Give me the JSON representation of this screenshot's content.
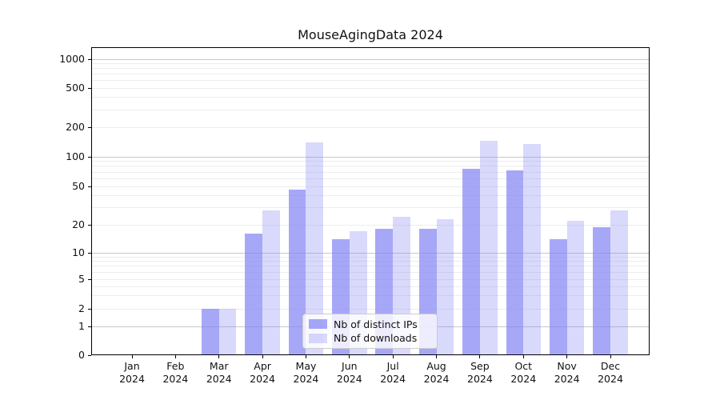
{
  "chart_data": {
    "type": "bar",
    "title": "MouseAgingData 2024",
    "categories": [
      "Jan",
      "Feb",
      "Mar",
      "Apr",
      "May",
      "Jun",
      "Jul",
      "Aug",
      "Sep",
      "Oct",
      "Nov",
      "Dec"
    ],
    "x_tick_year": "2024",
    "series": [
      {
        "name": "Nb of distinct IPs",
        "color": "#8282f5",
        "alpha": 0.7,
        "values": [
          0,
          0,
          2,
          16,
          46,
          14,
          18,
          18,
          75,
          73,
          14,
          19
        ]
      },
      {
        "name": "Nb of downloads",
        "color": "#8282f5",
        "alpha": 0.3,
        "values": [
          0,
          0,
          2,
          28,
          140,
          17,
          24,
          23,
          145,
          135,
          22,
          28
        ]
      }
    ],
    "xlabel": "",
    "ylabel": "",
    "yscale": "symlog",
    "yticks": [
      0,
      1,
      2,
      5,
      10,
      20,
      50,
      100,
      200,
      500,
      1000
    ],
    "minor_gridline_values": [
      2,
      3,
      4,
      5,
      6,
      7,
      8,
      9,
      20,
      30,
      40,
      50,
      60,
      70,
      80,
      90,
      200,
      300,
      400,
      500,
      600,
      700,
      800,
      900
    ],
    "major_gridline_values": [
      1,
      10,
      100,
      1000
    ],
    "ylim": [
      0,
      1400
    ],
    "grid": "horizontal major+minor",
    "legend_position": "inside lower center"
  },
  "colors": {
    "bar_base": "#8282f5",
    "major_grid": "#c9c9c9",
    "minor_grid": "#ededed",
    "axis": "#000000",
    "text": "#111111",
    "legend_border": "#cccccc",
    "background": "#ffffff"
  }
}
